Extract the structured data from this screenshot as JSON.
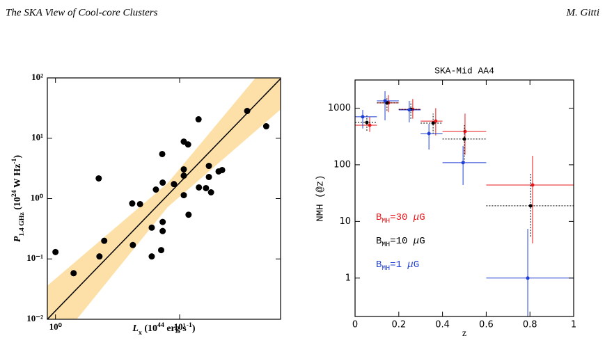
{
  "header": {
    "title": "The SKA View of Cool-core Clusters",
    "author": "M. Gitti"
  },
  "chart_data": [
    {
      "type": "scatter",
      "xlog": true,
      "ylog": true,
      "xlabel": [
        [
          "L",
          "italic"
        ],
        [
          "x",
          "sub"
        ],
        [
          " (10",
          ""
        ],
        [
          "44",
          "sup"
        ],
        [
          " erg s",
          ""
        ],
        [
          "-1",
          "sup"
        ],
        [
          ")",
          ""
        ]
      ],
      "ylabel": [
        [
          "P",
          "italic"
        ],
        [
          "1.4 GHz",
          "sub"
        ],
        [
          " (10",
          ""
        ],
        [
          "24",
          "sup"
        ],
        [
          " W Hz",
          ""
        ],
        [
          "-1",
          "sup"
        ],
        [
          ")",
          ""
        ]
      ],
      "xlim": [
        0.86,
        65
      ],
      "ylim": [
        0.01,
        100
      ],
      "xticks": [
        {
          "value": 1,
          "label": "10⁰"
        },
        {
          "value": 10,
          "label": "10¹"
        }
      ],
      "yticks": [
        {
          "value": 0.01,
          "label": "10⁻²"
        },
        {
          "value": 0.1,
          "label": "10⁻¹"
        },
        {
          "value": 1,
          "label": "10⁰"
        },
        {
          "value": 10,
          "label": "10¹"
        },
        {
          "value": 100,
          "label": "10²"
        }
      ],
      "color": "#000000",
      "x": [
        1.0,
        1.4,
        2.26,
        2.23,
        2.47,
        4.15,
        4.2,
        4.8,
        5.96,
        5.96,
        6.44,
        7.24,
        7.3,
        7.3,
        7.3,
        7.1,
        9.0,
        10.8,
        11.7,
        10.8,
        10.8,
        10.8,
        11.8,
        14.2,
        14.3,
        16.3,
        17.2,
        17.2,
        17.9,
        20.6,
        22,
        35,
        49.8
      ],
      "values": [
        0.13,
        0.058,
        0.11,
        2.16,
        0.2,
        0.83,
        0.17,
        0.81,
        0.33,
        0.11,
        1.41,
        5.47,
        1.84,
        0.41,
        0.29,
        0.14,
        1.74,
        8.8,
        7.9,
        3.05,
        1.14,
        2.4,
        0.54,
        20.6,
        1.53,
        1.49,
        3.48,
        2.28,
        1.27,
        2.82,
        2.97,
        28.3,
        15.8
      ],
      "fit": {
        "x": [
          0.86,
          65
        ],
        "y": [
          0.01,
          97
        ],
        "color": "#000000"
      },
      "band": {
        "x": [
          0.86,
          8,
          65
        ],
        "lower": [
          0.0025,
          0.72,
          30
        ],
        "upper": [
          0.036,
          1.8,
          316
        ],
        "color": "#fcd58b"
      }
    },
    {
      "type": "errorbar",
      "title": "SKA-Mid AA4",
      "xlabel": "z",
      "ylabel": "NMH (@z)",
      "ylog": true,
      "xlim": [
        0,
        1
      ],
      "ylim": [
        0.21,
        3140
      ],
      "xticks": [
        0,
        0.2,
        0.4,
        0.6,
        0.8,
        1
      ],
      "yticks": [
        1,
        10,
        100,
        1000
      ],
      "bins": [
        0,
        0.1,
        0.2,
        0.3,
        0.4,
        0.6,
        1.0
      ],
      "series": [
        {
          "name": [
            [
              "B",
              ""
            ],
            [
              "MH",
              "sub"
            ],
            [
              "=30 ",
              ""
            ],
            [
              "μ",
              "italic"
            ],
            [
              "G",
              ""
            ]
          ],
          "color": "#e8171b",
          "dash": "none",
          "x": [
            0.067,
            0.153,
            0.264,
            0.369,
            0.503,
            0.812
          ],
          "values": [
            500,
            1240,
            950,
            590,
            388,
            44
          ],
          "y_low": [
            380,
            850,
            650,
            330,
            150,
            4.1
          ],
          "y_high": [
            700,
            1700,
            1450,
            1000,
            800,
            144
          ]
        },
        {
          "name": [
            [
              "B",
              ""
            ],
            [
              "MH",
              "sub"
            ],
            [
              "=10 ",
              ""
            ],
            [
              "μ",
              "italic"
            ],
            [
              "G",
              ""
            ]
          ],
          "color": "#000000",
          "dash": "2,2",
          "x": [
            0.054,
            0.146,
            0.255,
            0.357,
            0.5,
            0.803
          ],
          "values": [
            560,
            1240,
            950,
            545,
            285,
            18.9
          ],
          "y_low": [
            400,
            900,
            650,
            350,
            110,
            5.4
          ],
          "y_high": [
            760,
            1600,
            1300,
            800,
            500,
            69
          ]
        },
        {
          "name": [
            [
              "B",
              ""
            ],
            [
              "MH",
              "sub"
            ],
            [
              "=1 ",
              ""
            ],
            [
              "μ",
              "italic"
            ],
            [
              "G",
              ""
            ]
          ],
          "color": "#1f3fd6",
          "dash": "none",
          "x": [
            0.035,
            0.137,
            0.248,
            0.338,
            0.494,
            0.79
          ],
          "values": [
            703,
            1346,
            930,
            356,
            109,
            1
          ],
          "y_low": [
            437,
            610,
            560,
            186,
            44,
            0.1
          ],
          "y_high": [
            930,
            1990,
            1346,
            530,
            214,
            7.4
          ]
        }
      ]
    }
  ]
}
